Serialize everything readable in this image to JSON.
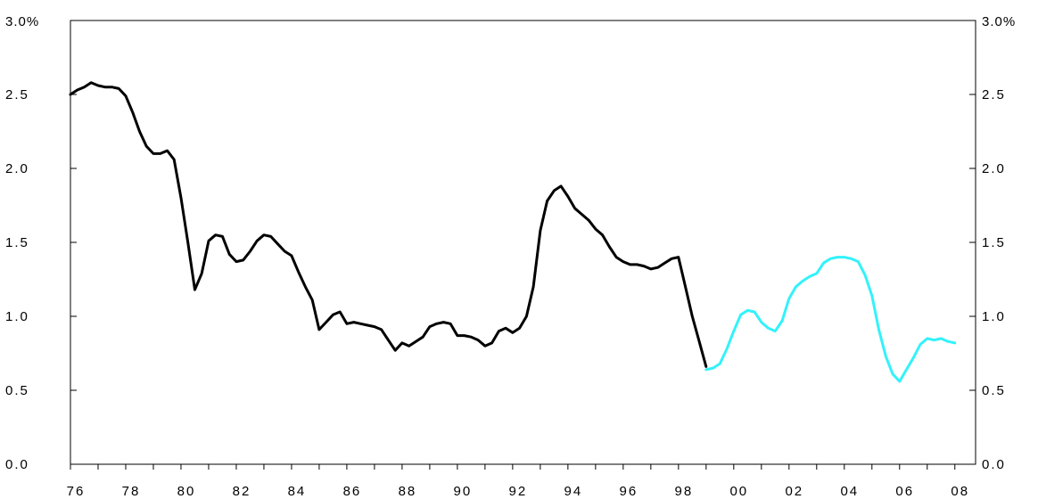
{
  "chart_data": {
    "type": "line",
    "title": "",
    "xlabel": "",
    "ylabel": "",
    "ylim": [
      0,
      3
    ],
    "y_ticks": [
      0.0,
      0.5,
      1.0,
      1.5,
      2.0,
      2.5,
      3.0
    ],
    "y_tick_labels": [
      "0.0",
      "0.5",
      "1.0",
      "1.5",
      "2.0",
      "2.5",
      "3.0"
    ],
    "y_top_label_left": "3.0%",
    "y_top_label_right": "3.0%",
    "xlim": [
      1976,
      2008.75
    ],
    "x_ticks": [
      1976,
      1978,
      1980,
      1982,
      1984,
      1986,
      1988,
      1990,
      1992,
      1994,
      1996,
      1998,
      2000,
      2002,
      2004,
      2006,
      2008
    ],
    "x_tick_labels": [
      "76",
      "78",
      "80",
      "82",
      "84",
      "86",
      "88",
      "90",
      "92",
      "94",
      "96",
      "98",
      "00",
      "02",
      "04",
      "06",
      "08"
    ],
    "grid": false,
    "legend": "none",
    "series": [
      {
        "color": "#000000",
        "x": [
          1976.0,
          1976.25,
          1976.5,
          1976.75,
          1977.0,
          1977.25,
          1977.5,
          1977.75,
          1978.0,
          1978.25,
          1978.5,
          1978.75,
          1979.0,
          1979.25,
          1979.5,
          1979.75,
          1980.0,
          1980.25,
          1980.5,
          1980.75,
          1981.0,
          1981.25,
          1981.5,
          1981.75,
          1982.0,
          1982.25,
          1982.5,
          1982.75,
          1983.0,
          1983.25,
          1983.5,
          1983.75,
          1984.0,
          1984.25,
          1984.5,
          1984.75,
          1985.0,
          1985.25,
          1985.5,
          1985.75,
          1986.0,
          1986.25,
          1986.5,
          1986.75,
          1987.0,
          1987.25,
          1987.5,
          1987.75,
          1988.0,
          1988.25,
          1988.5,
          1988.75,
          1989.0,
          1989.25,
          1989.5,
          1989.75,
          1990.0,
          1990.25,
          1990.5,
          1990.75,
          1991.0,
          1991.25,
          1991.5,
          1991.75,
          1992.0,
          1992.25,
          1992.5,
          1992.75,
          1993.0,
          1993.25,
          1993.5,
          1993.75,
          1994.0,
          1994.25,
          1994.5,
          1994.75,
          1995.0,
          1995.25,
          1995.5,
          1995.75,
          1996.0,
          1996.25,
          1996.5,
          1996.75,
          1997.0,
          1997.25,
          1997.5,
          1997.75,
          1998.0,
          1998.25,
          1998.5,
          1998.75,
          1999.0
        ],
        "values": [
          2.5,
          2.53,
          2.55,
          2.58,
          2.56,
          2.55,
          2.55,
          2.54,
          2.49,
          2.38,
          2.25,
          2.15,
          2.1,
          2.1,
          2.12,
          2.06,
          1.8,
          1.5,
          1.18,
          1.29,
          1.51,
          1.55,
          1.54,
          1.42,
          1.37,
          1.38,
          1.44,
          1.51,
          1.55,
          1.54,
          1.49,
          1.44,
          1.41,
          1.3,
          1.2,
          1.11,
          0.91,
          0.96,
          1.01,
          1.03,
          0.95,
          0.96,
          0.95,
          0.94,
          0.93,
          0.91,
          0.84,
          0.77,
          0.82,
          0.8,
          0.83,
          0.86,
          0.93,
          0.95,
          0.96,
          0.95,
          0.87,
          0.87,
          0.86,
          0.84,
          0.8,
          0.82,
          0.9,
          0.92,
          0.89,
          0.92,
          1.0,
          1.2,
          1.58,
          1.78,
          1.85,
          1.88,
          1.81,
          1.73,
          1.69,
          1.65,
          1.59,
          1.55,
          1.47,
          1.4,
          1.37,
          1.35,
          1.35,
          1.34,
          1.32,
          1.33,
          1.36,
          1.39,
          1.4,
          1.2,
          1.0,
          0.83,
          0.66
        ]
      },
      {
        "color": "#33f2fa",
        "x": [
          1999.0,
          1999.25,
          1999.5,
          1999.75,
          2000.0,
          2000.25,
          2000.5,
          2000.75,
          2001.0,
          2001.25,
          2001.5,
          2001.75,
          2002.0,
          2002.25,
          2002.5,
          2002.75,
          2003.0,
          2003.25,
          2003.5,
          2003.75,
          2004.0,
          2004.25,
          2004.5,
          2004.75,
          2005.0,
          2005.25,
          2005.5,
          2005.75,
          2006.0,
          2006.25,
          2006.5,
          2006.75,
          2007.0,
          2007.25,
          2007.5,
          2007.75,
          2008.0
        ],
        "values": [
          0.64,
          0.65,
          0.68,
          0.78,
          0.9,
          1.01,
          1.04,
          1.03,
          0.96,
          0.92,
          0.9,
          0.97,
          1.12,
          1.2,
          1.24,
          1.27,
          1.29,
          1.36,
          1.39,
          1.4,
          1.4,
          1.39,
          1.37,
          1.28,
          1.14,
          0.91,
          0.73,
          0.61,
          0.56,
          0.64,
          0.72,
          0.81,
          0.85,
          0.84,
          0.85,
          0.83,
          0.82
        ]
      }
    ]
  }
}
